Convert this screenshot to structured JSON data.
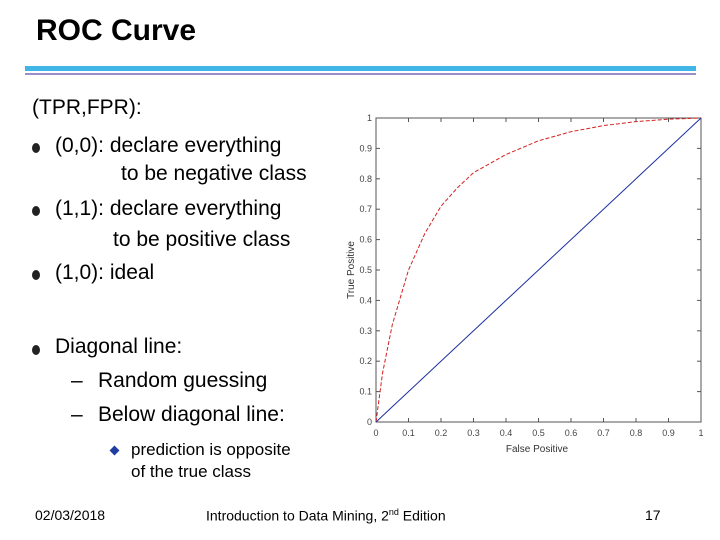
{
  "slide": {
    "title": "ROC Curve",
    "intro": "(TPR,FPR):",
    "bullets": [
      {
        "line1": "(0,0): declare everything",
        "line2": "to be negative class"
      },
      {
        "line1": "(1,1): declare everything",
        "line2": "to be positive class"
      },
      {
        "line1": "(1,0): ideal"
      }
    ],
    "diagonal": {
      "heading": "Diagonal line:",
      "items": [
        "Random guessing",
        "Below diagonal line:"
      ],
      "dash": "–",
      "subitem": {
        "line1": "prediction is opposite",
        "line2": "of the true class"
      }
    }
  },
  "footer": {
    "date": "02/03/2018",
    "course_main": "Introduction to Data Mining, 2",
    "course_sup": "nd",
    "course_end": " Edition",
    "page": "17"
  },
  "chart_data": {
    "type": "line",
    "xlabel": "False Positive",
    "ylabel": "True Positive",
    "xlim": [
      0,
      1
    ],
    "ylim": [
      0,
      1
    ],
    "xticks": [
      "0",
      "0.1",
      "0.2",
      "0.3",
      "0.4",
      "0.5",
      "0.6",
      "0.7",
      "0.8",
      "0.9",
      "1"
    ],
    "yticks": [
      "0",
      "0.1",
      "0.2",
      "0.3",
      "0.4",
      "0.5",
      "0.6",
      "0.7",
      "0.8",
      "0.9",
      "1"
    ],
    "grid": false,
    "series": [
      {
        "style": "dashed",
        "color": "#d42020",
        "x": [
          0,
          0.02,
          0.05,
          0.1,
          0.15,
          0.2,
          0.25,
          0.3,
          0.4,
          0.5,
          0.6,
          0.7,
          0.8,
          0.9,
          1.0
        ],
        "y": [
          0,
          0.16,
          0.32,
          0.5,
          0.62,
          0.71,
          0.77,
          0.82,
          0.88,
          0.925,
          0.955,
          0.975,
          0.988,
          0.996,
          1.0
        ]
      },
      {
        "style": "solid",
        "color": "#1a2fa0",
        "x": [
          0,
          1
        ],
        "y": [
          0,
          1
        ]
      }
    ]
  }
}
